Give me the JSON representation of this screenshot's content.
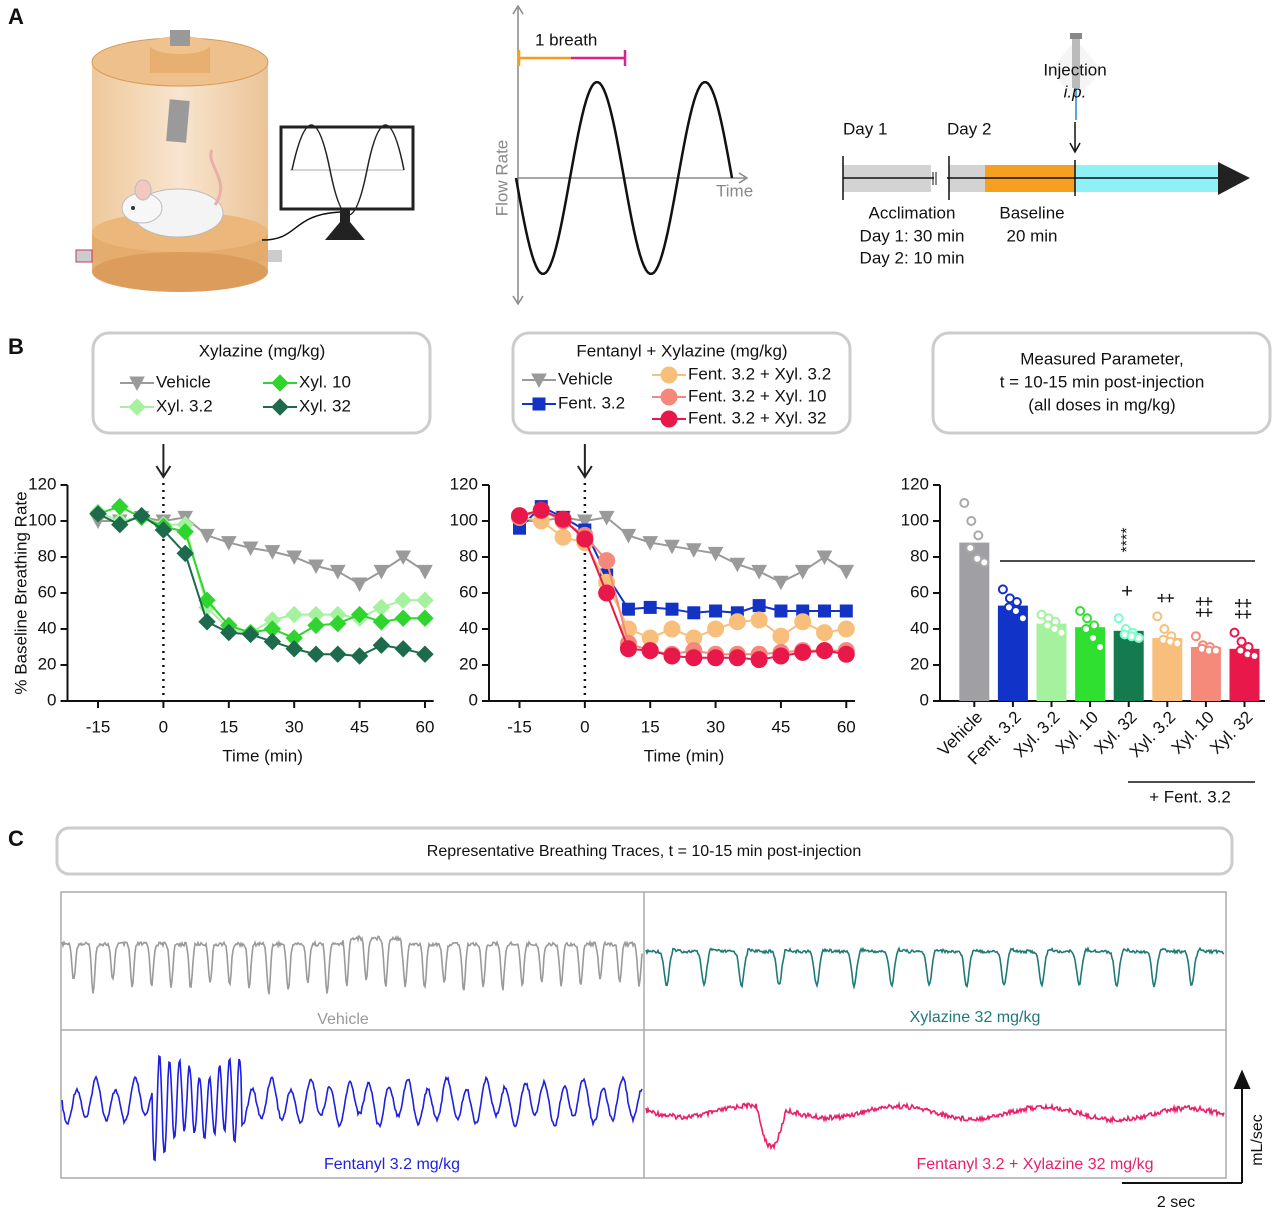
{
  "panel_labels": [
    "A",
    "B",
    "C"
  ],
  "panel_a": {
    "breath_label": "1 breath",
    "flow_axis_label": "Flow Rate",
    "time_axis_label": "Time",
    "day1": "Day 1",
    "day2": "Day 2",
    "injection": "Injection",
    "route": "i.p.",
    "acclimation": "Acclimation",
    "acclimation_day1": "Day 1: 30 min",
    "acclimation_day2": "Day 2: 10 min",
    "baseline": "Baseline",
    "baseline_duration": "20 min"
  },
  "chart_data": [
    {
      "type": "line",
      "legend_title": "Xylazine (mg/kg)",
      "y_label": "% Baseline Breathing Rate",
      "x_label": "Time (min)",
      "x": [
        -15,
        -10,
        -5,
        0,
        5,
        10,
        15,
        20,
        25,
        30,
        35,
        40,
        45,
        50,
        55,
        60
      ],
      "xlim": [
        -22,
        62
      ],
      "xticks": [
        -15,
        0,
        15,
        30,
        45,
        60
      ],
      "ylim": [
        0,
        120
      ],
      "yticks": [
        0,
        20,
        40,
        60,
        80,
        100,
        120
      ],
      "vline_x": 0,
      "series": [
        {
          "name": "Vehicle",
          "color": "#9a9a9a",
          "marker": "triangle-down",
          "values": [
            100,
            100,
            102,
            100,
            102,
            92,
            88,
            85,
            83,
            80,
            75,
            72,
            65,
            72,
            80,
            72
          ]
        },
        {
          "name": "Xyl. 3.2",
          "color": "#a4f29e",
          "marker": "diamond",
          "values": [
            105,
            100,
            102,
            98,
            98,
            52,
            40,
            38,
            45,
            48,
            48,
            48,
            46,
            52,
            56,
            56
          ]
        },
        {
          "name": "Xyl. 10",
          "color": "#2fd42f",
          "marker": "diamond",
          "values": [
            104,
            108,
            102,
            97,
            94,
            56,
            42,
            38,
            40,
            35,
            42,
            43,
            48,
            44,
            46,
            46
          ]
        },
        {
          "name": "Xyl. 32",
          "color": "#1d6b4c",
          "marker": "diamond",
          "values": [
            104,
            98,
            103,
            95,
            82,
            44,
            38,
            37,
            33,
            29,
            26,
            26,
            25,
            31,
            29,
            26
          ]
        }
      ]
    },
    {
      "type": "line",
      "legend_title": "Fentanyl + Xylazine (mg/kg)",
      "x_label": "Time (min)",
      "x": [
        -15,
        -10,
        -5,
        0,
        5,
        10,
        15,
        20,
        25,
        30,
        35,
        40,
        45,
        50,
        55,
        60
      ],
      "xlim": [
        -22,
        62
      ],
      "xticks": [
        -15,
        0,
        15,
        30,
        45,
        60
      ],
      "ylim": [
        0,
        120
      ],
      "yticks": [
        0,
        20,
        40,
        60,
        80,
        100,
        120
      ],
      "vline_x": 0,
      "series": [
        {
          "name": "Vehicle",
          "color": "#9a9a9a",
          "marker": "triangle-down",
          "values": [
            100,
            100,
            102,
            100,
            102,
            92,
            88,
            86,
            84,
            82,
            76,
            72,
            66,
            72,
            80,
            72
          ]
        },
        {
          "name": "Fent. 3.2",
          "color": "#1233c4",
          "marker": "square",
          "values": [
            96,
            108,
            102,
            95,
            70,
            51,
            52,
            51,
            49,
            50,
            49,
            53,
            50,
            50,
            50,
            50
          ]
        },
        {
          "name": "Fent. 3.2 + Xyl. 3.2",
          "color": "#f8bf7c",
          "marker": "circle",
          "values": [
            102,
            100,
            91,
            88,
            66,
            40,
            35,
            40,
            35,
            40,
            44,
            45,
            36,
            44,
            38,
            40
          ]
        },
        {
          "name": "Fent. 3.2 + Xyl. 10",
          "color": "#f4887a",
          "marker": "circle",
          "values": [
            102,
            106,
            100,
            92,
            78,
            32,
            28,
            26,
            28,
            26,
            26,
            26,
            27,
            28,
            28,
            28
          ]
        },
        {
          "name": "Fent. 3.2 + Xyl. 32",
          "color": "#e8194a",
          "marker": "circle",
          "values": [
            103,
            106,
            101,
            90,
            60,
            29,
            28,
            25,
            24,
            24,
            24,
            23,
            25,
            27,
            28,
            26
          ]
        }
      ]
    },
    {
      "type": "bar",
      "legend_title": [
        "Measured Parameter,",
        "t = 10-15 min post-injection",
        "(all doses in mg/kg)"
      ],
      "categories": [
        "Vehicle",
        "Fent. 3.2",
        "Xyl. 3.2",
        "Xyl. 10",
        "Xyl. 32",
        "Xyl. 3.2",
        "Xyl. 10",
        "Xyl. 32"
      ],
      "values": [
        88,
        53,
        43,
        41,
        39,
        35,
        30,
        29
      ],
      "colors": [
        "#a0a0a4",
        "#1233c8",
        "#a4f29e",
        "#30e030",
        "#157a4e",
        "#f8bf7c",
        "#f58a7a",
        "#e8194a"
      ],
      "points": [
        [
          110,
          100,
          92,
          85,
          79,
          77
        ],
        [
          62,
          57,
          55,
          52,
          50,
          46
        ],
        [
          48,
          46,
          44,
          42,
          40,
          38
        ],
        [
          50,
          46,
          42,
          40,
          35,
          30
        ],
        [
          46,
          40,
          38,
          37,
          36,
          35
        ],
        [
          47,
          40,
          36,
          34,
          33,
          32
        ],
        [
          36,
          31,
          30,
          29,
          28,
          28
        ],
        [
          38,
          33,
          30,
          28,
          26,
          25
        ]
      ],
      "significance": "****",
      "marks": [
        null,
        null,
        null,
        null,
        "+",
        "‡",
        "‡‡",
        "‡‡"
      ],
      "group_label": "+ Fent. 3.2",
      "ylim": [
        0,
        120
      ],
      "yticks": [
        0,
        20,
        40,
        60,
        80,
        100,
        120
      ]
    }
  ],
  "panel_c": {
    "title": "Representative Breathing Traces, t = 10-15 min post-injection",
    "traces": [
      "Vehicle",
      "Xylazine 32 mg/kg",
      "Fentanyl 3.2 mg/kg",
      "Fentanyl 3.2 + Xylazine 32 mg/kg"
    ],
    "y_scale_label": "mL/sec",
    "x_scale_label": "2 sec"
  }
}
